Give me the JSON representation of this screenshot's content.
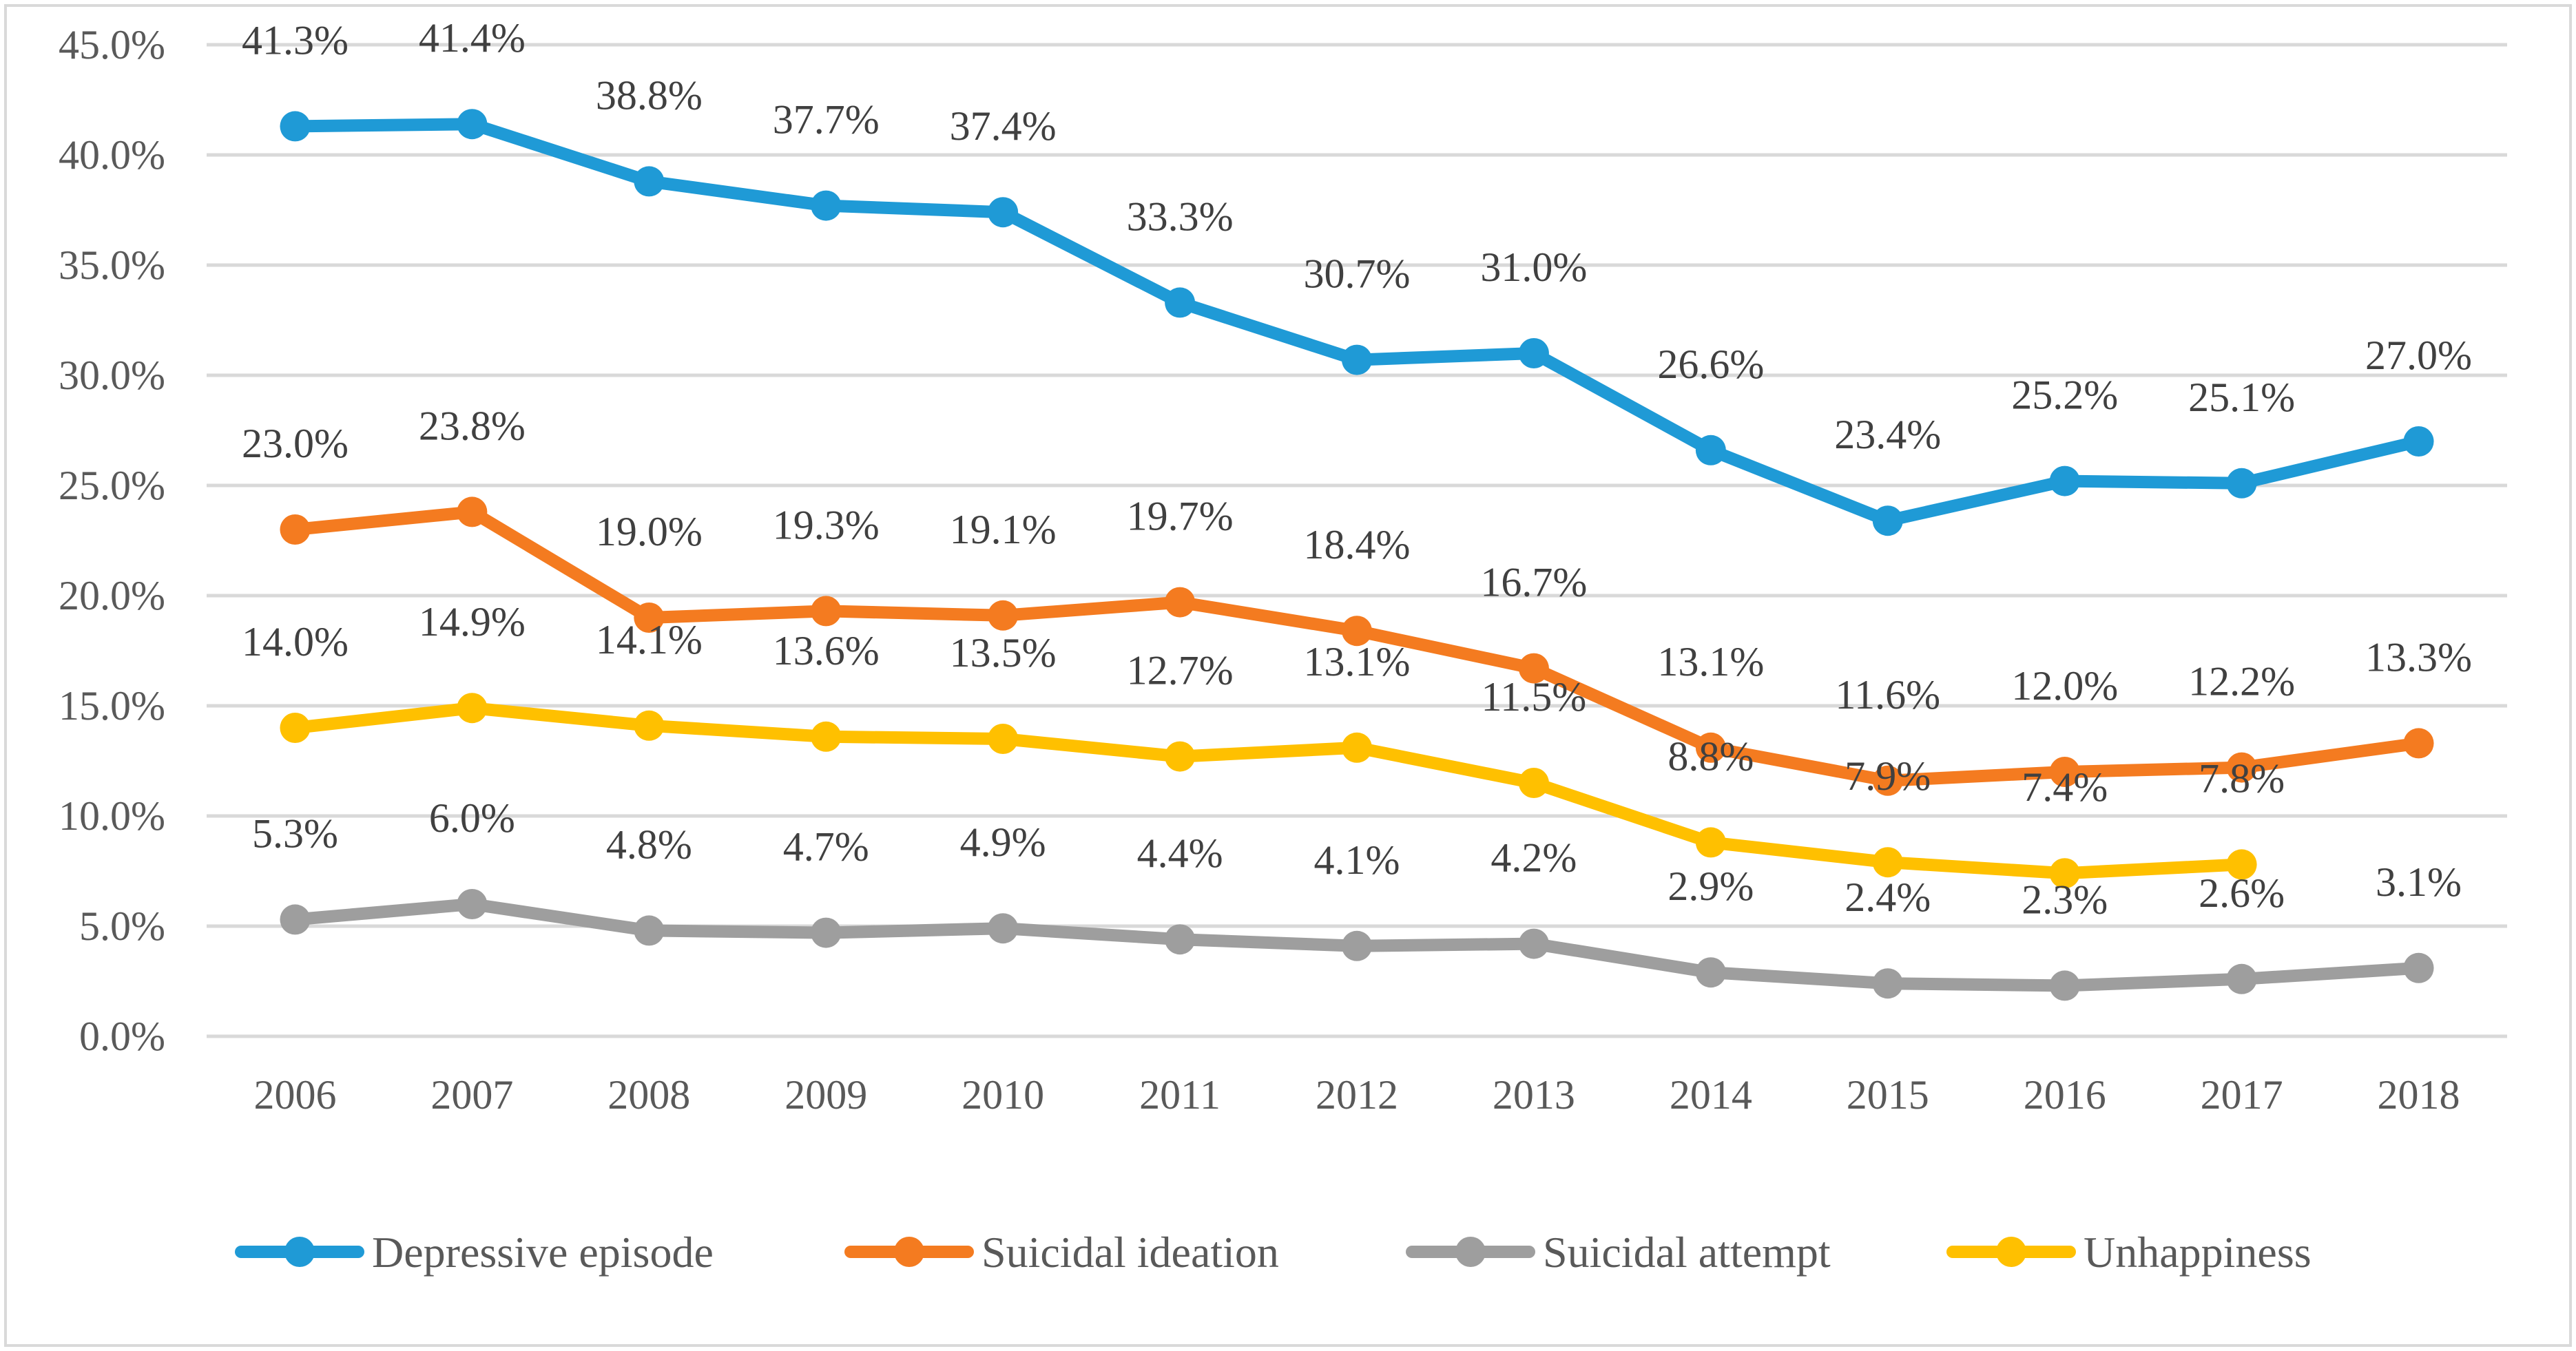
{
  "chart_data": {
    "type": "line",
    "title": "",
    "xlabel": "",
    "ylabel": "",
    "categories": [
      "2006",
      "2007",
      "2008",
      "2009",
      "2010",
      "2011",
      "2012",
      "2013",
      "2014",
      "2015",
      "2016",
      "2017",
      "2018"
    ],
    "ylim": [
      0,
      45
    ],
    "y_ticks": [
      0,
      5,
      10,
      15,
      20,
      25,
      30,
      35,
      40,
      45
    ],
    "y_tick_labels": [
      "0.0%",
      "5.0%",
      "10.0%",
      "15.0%",
      "20.0%",
      "25.0%",
      "30.0%",
      "35.0%",
      "40.0%",
      "45.0%"
    ],
    "grid": true,
    "legend_position": "bottom",
    "series": [
      {
        "name": "Depressive episode",
        "color": "#1f9ad6",
        "values": [
          41.3,
          41.4,
          38.8,
          37.7,
          37.4,
          33.3,
          30.7,
          31.0,
          26.6,
          23.4,
          25.2,
          25.1,
          27.0
        ],
        "labels": [
          "41.3%",
          "41.4%",
          "38.8%",
          "37.7%",
          "37.4%",
          "33.3%",
          "30.7%",
          "31.0%",
          "26.6%",
          "23.4%",
          "25.2%",
          "25.1%",
          "27.0%"
        ]
      },
      {
        "name": "Suicidal ideation",
        "color": "#f47b20",
        "values": [
          23.0,
          23.8,
          19.0,
          19.3,
          19.1,
          19.7,
          18.4,
          16.7,
          13.1,
          11.6,
          12.0,
          12.2,
          13.3
        ],
        "labels": [
          "23.0%",
          "23.8%",
          "19.0%",
          "19.3%",
          "19.1%",
          "19.7%",
          "18.4%",
          "16.7%",
          "13.1%",
          "11.6%",
          "12.0%",
          "12.2%",
          "13.3%"
        ]
      },
      {
        "name": "Suicidal attempt",
        "color": "#9e9e9e",
        "values": [
          5.3,
          6.0,
          4.8,
          4.7,
          4.9,
          4.4,
          4.1,
          4.2,
          2.9,
          2.4,
          2.3,
          2.6,
          3.1
        ],
        "labels": [
          "5.3%",
          "6.0%",
          "4.8%",
          "4.7%",
          "4.9%",
          "4.4%",
          "4.1%",
          "4.2%",
          "2.9%",
          "2.4%",
          "2.3%",
          "2.6%",
          "3.1%"
        ]
      },
      {
        "name": "Unhappiness",
        "color": "#ffc000",
        "values": [
          14.0,
          14.9,
          14.1,
          13.6,
          13.5,
          12.7,
          13.1,
          11.5,
          8.8,
          7.9,
          7.4,
          7.8,
          null
        ],
        "labels": [
          "14.0%",
          "14.9%",
          "14.1%",
          "13.6%",
          "13.5%",
          "12.7%",
          "13.1%",
          "11.5%",
          "8.8%",
          "7.9%",
          "7.4%",
          "7.8%",
          null
        ]
      }
    ]
  }
}
